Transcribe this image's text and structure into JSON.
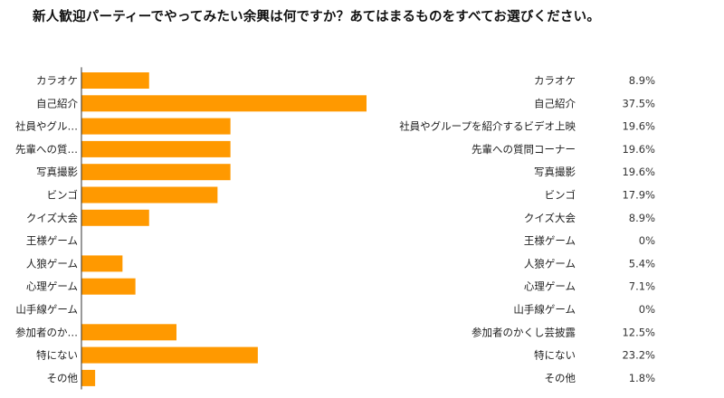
{
  "chart_data": {
    "type": "bar",
    "orientation": "horizontal",
    "title": "新人歓迎パーティーでやってみたい余興は何ですか？あてはまるものをすべてお選びください。",
    "categories": [
      "カラオケ",
      "自己紹介",
      "社員やグループを紹介するビデオ上映",
      "先輩への質問コーナー",
      "写真撮影",
      "ビンゴ",
      "クイズ大会",
      "王様ゲーム",
      "人狼ゲーム",
      "心理ゲーム",
      "山手線ゲーム",
      "参加者のかくし芸披露",
      "特にない",
      "その他"
    ],
    "axis_labels": [
      "カラオケ",
      "自己紹介",
      "社員やグル…",
      "先輩への質…",
      "写真撮影",
      "ビンゴ",
      "クイズ大会",
      "王様ゲーム",
      "人狼ゲーム",
      "心理ゲーム",
      "山手線ゲーム",
      "参加者のか…",
      "特にない",
      "その他"
    ],
    "values": [
      8.9,
      37.5,
      19.6,
      19.6,
      19.6,
      17.9,
      8.9,
      0,
      5.4,
      7.1,
      0,
      12.5,
      23.2,
      1.8
    ],
    "value_labels": [
      "8.9%",
      "37.5%",
      "19.6%",
      "19.6%",
      "19.6%",
      "17.9%",
      "8.9%",
      "0%",
      "5.4%",
      "7.1%",
      "0%",
      "12.5%",
      "23.2%",
      "1.8%"
    ],
    "unit": "%",
    "xlim": [
      0,
      40
    ],
    "grid": false,
    "colors": {
      "bar": "#FF9900",
      "axis": "#333333"
    }
  }
}
